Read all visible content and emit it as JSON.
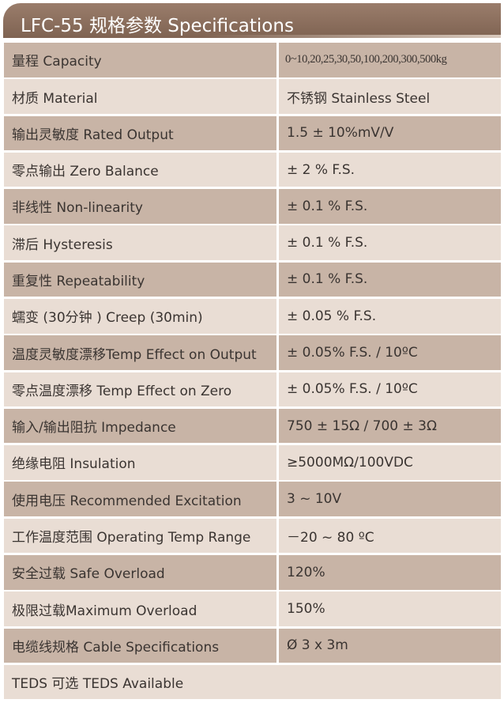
{
  "header": {
    "title": "LFC-55 规格参数 Specifications"
  },
  "table": {
    "rows": [
      [
        "量程 Capacity",
        "0~10,20,25,30,50,100,200,300,500kg"
      ],
      [
        "材质 Material",
        "不锈钢 Stainless Steel"
      ],
      [
        "输出灵敏度 Rated Output",
        "1.5 ± 10%mV/V"
      ],
      [
        "零点输出  Zero Balance",
        "± 2 % F.S."
      ],
      [
        "非线性 Non-linearity",
        "± 0.1 % F.S."
      ],
      [
        "滞后 Hysteresis",
        "± 0.1 % F.S."
      ],
      [
        "重复性 Repeatability",
        "± 0.1 % F.S."
      ],
      [
        "蠕变 (30分钟 ) Creep (30min)",
        "± 0.05 % F.S."
      ],
      [
        "温度灵敏度漂移Temp Effect on Output",
        "± 0.05% F.S. / 10ºC"
      ],
      [
        "零点温度漂移 Temp Effect on Zero",
        "± 0.05% F.S. / 10ºC"
      ],
      [
        "输入/输出阻抗 Impedance",
        "750 ± 15Ω / 700 ± 3Ω"
      ],
      [
        "绝缘电阻  Insulation",
        "≥5000MΩ/100VDC"
      ],
      [
        "使用电压 Recommended Excitation",
        "3 ~ 10V"
      ],
      [
        "工作温度范围 Operating Temp  Range",
        "－20 ~ 80 ºC"
      ],
      [
        "安全过载 Safe Overload",
        "120%"
      ],
      [
        "极限过载Maximum Overload",
        "150%"
      ],
      [
        "电缆线规格 Cable Specifications",
        "Ø 3 x 3m"
      ],
      [
        "TEDS 可选 TEDS Available"
      ]
    ]
  }
}
